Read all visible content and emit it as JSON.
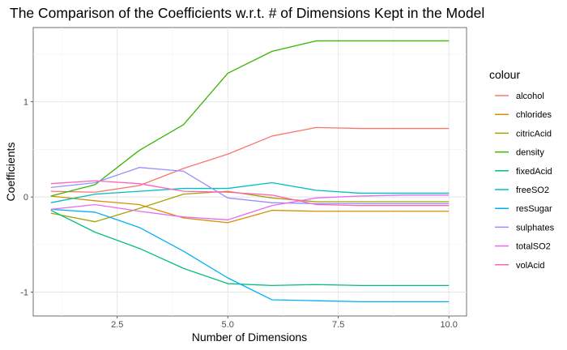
{
  "chart_data": {
    "type": "line",
    "title": "The Comparison of the Coefficients w.r.t. # of Dimensions Kept in the Model",
    "xlabel": "Number of Dimensions",
    "ylabel": "Coefficients",
    "xlim": [
      0.6,
      10.4
    ],
    "ylim": [
      -1.25,
      1.78
    ],
    "xticks": [
      2.5,
      5.0,
      7.5,
      10.0
    ],
    "xtick_labels": [
      "2.5",
      "5.0",
      "7.5",
      "10.0"
    ],
    "yticks": [
      -1,
      0,
      1
    ],
    "ytick_labels": [
      "-1",
      "0",
      "1"
    ],
    "grid": true,
    "legend_title": "colour",
    "legend_position": "right",
    "x": [
      1,
      2,
      3,
      4,
      5,
      6,
      7,
      8,
      9,
      10
    ],
    "series": [
      {
        "name": "alcohol",
        "color": "#F8766D",
        "values": [
          0.06,
          0.05,
          0.12,
          0.3,
          0.45,
          0.64,
          0.73,
          0.72,
          0.72,
          0.72
        ]
      },
      {
        "name": "chlorides",
        "color": "#D89000",
        "values": [
          0.01,
          -0.04,
          -0.08,
          -0.22,
          -0.27,
          -0.14,
          -0.15,
          -0.15,
          -0.15,
          -0.15
        ]
      },
      {
        "name": "citricAcid",
        "color": "#A3A500",
        "values": [
          -0.17,
          -0.26,
          -0.12,
          0.03,
          0.06,
          -0.01,
          -0.05,
          -0.05,
          -0.05,
          -0.05
        ]
      },
      {
        "name": "density",
        "color": "#39B600",
        "values": [
          0.01,
          0.13,
          0.49,
          0.76,
          1.3,
          1.53,
          1.64,
          1.64,
          1.64,
          1.64
        ]
      },
      {
        "name": "fixedAcid",
        "color": "#00BF7D",
        "values": [
          -0.14,
          -0.37,
          -0.54,
          -0.75,
          -0.91,
          -0.93,
          -0.92,
          -0.93,
          -0.93,
          -0.93
        ]
      },
      {
        "name": "freeSO2",
        "color": "#00BFC4",
        "values": [
          -0.06,
          0.03,
          0.06,
          0.09,
          0.09,
          0.15,
          0.07,
          0.04,
          0.04,
          0.04
        ]
      },
      {
        "name": "resSugar",
        "color": "#00B0F6",
        "values": [
          -0.13,
          -0.16,
          -0.32,
          -0.57,
          -0.85,
          -1.08,
          -1.09,
          -1.1,
          -1.1,
          -1.1
        ]
      },
      {
        "name": "sulphates",
        "color": "#9590FF",
        "values": [
          0.1,
          0.15,
          0.31,
          0.27,
          -0.01,
          -0.06,
          -0.07,
          -0.07,
          -0.07,
          -0.07
        ]
      },
      {
        "name": "totalSO2",
        "color": "#E76BF3",
        "values": [
          -0.13,
          -0.08,
          -0.15,
          -0.21,
          -0.24,
          -0.09,
          -0.01,
          0.01,
          0.02,
          0.02
        ]
      },
      {
        "name": "volAcid",
        "color": "#FF62BC",
        "values": [
          0.14,
          0.17,
          0.14,
          0.06,
          0.05,
          0.02,
          -0.08,
          -0.09,
          -0.09,
          -0.09
        ]
      }
    ]
  }
}
